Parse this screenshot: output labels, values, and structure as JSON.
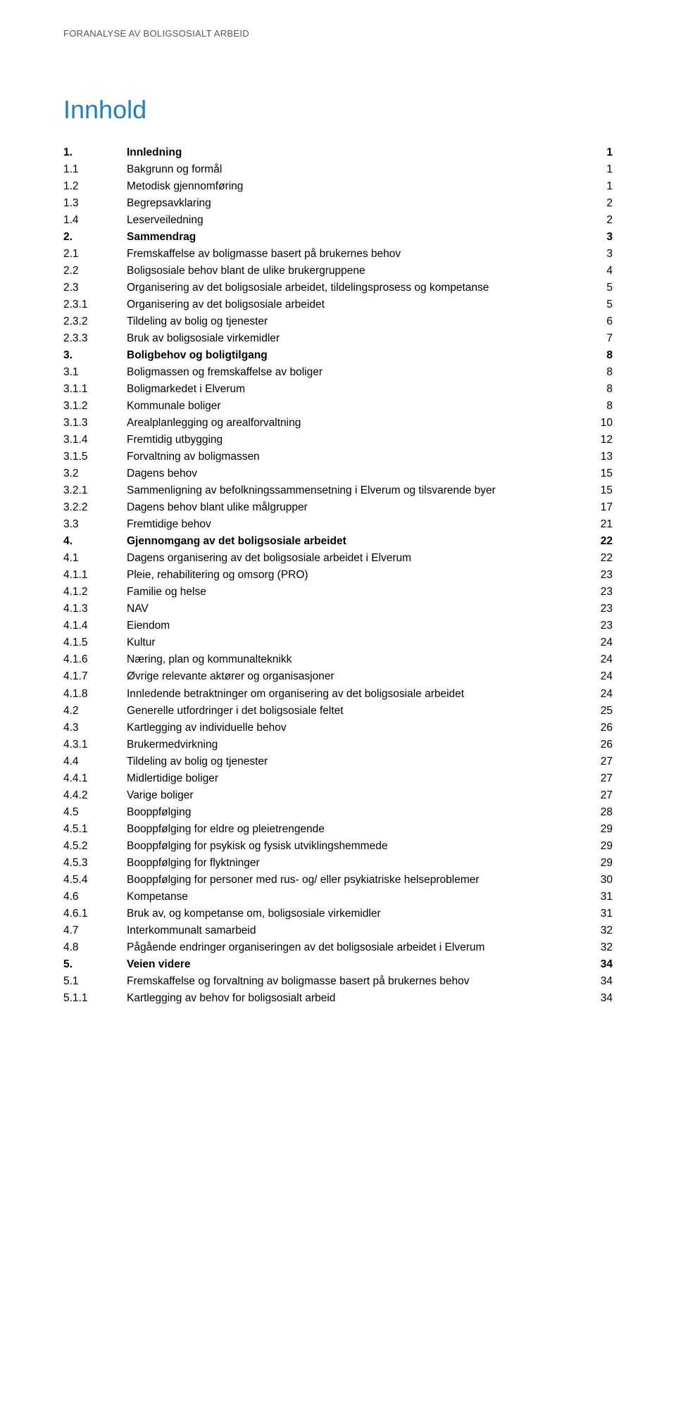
{
  "header_label": "FORANALYSE AV BOLIGSOSIALT ARBEID",
  "title": "Innhold",
  "colors": {
    "title_color": "#1f7fbf",
    "header_color": "#555555",
    "text_color": "#000000",
    "background": "#ffffff"
  },
  "typography": {
    "header_fontsize": 13,
    "title_fontsize": 36,
    "body_fontsize": 15.5,
    "line_height": 1.55
  },
  "toc": [
    {
      "num": "1.",
      "text": "Innledning",
      "page": "1",
      "bold": true
    },
    {
      "num": "1.1",
      "text": "Bakgrunn og formål",
      "page": "1",
      "bold": false
    },
    {
      "num": "1.2",
      "text": "Metodisk gjennomføring",
      "page": "1",
      "bold": false
    },
    {
      "num": "1.3",
      "text": "Begrepsavklaring",
      "page": "2",
      "bold": false
    },
    {
      "num": "1.4",
      "text": "Leserveiledning",
      "page": "2",
      "bold": false
    },
    {
      "num": "2.",
      "text": "Sammendrag",
      "page": "3",
      "bold": true
    },
    {
      "num": "2.1",
      "text": "Fremskaffelse av boligmasse basert på brukernes behov",
      "page": "3",
      "bold": false
    },
    {
      "num": "2.2",
      "text": "Boligsosiale behov blant de ulike brukergruppene",
      "page": "4",
      "bold": false
    },
    {
      "num": "2.3",
      "text": "Organisering av det boligsosiale arbeidet, tildelingsprosess og kompetanse",
      "page": "5",
      "bold": false
    },
    {
      "num": "2.3.1",
      "text": "Organisering av det boligsosiale arbeidet",
      "page": "5",
      "bold": false
    },
    {
      "num": "2.3.2",
      "text": "Tildeling av bolig og tjenester",
      "page": "6",
      "bold": false
    },
    {
      "num": "2.3.3",
      "text": "Bruk av boligsosiale virkemidler",
      "page": "7",
      "bold": false
    },
    {
      "num": "3.",
      "text": "Boligbehov og boligtilgang",
      "page": "8",
      "bold": true
    },
    {
      "num": "3.1",
      "text": "Boligmassen og fremskaffelse av boliger",
      "page": "8",
      "bold": false
    },
    {
      "num": "3.1.1",
      "text": "Boligmarkedet i Elverum",
      "page": "8",
      "bold": false
    },
    {
      "num": "3.1.2",
      "text": "Kommunale boliger",
      "page": "8",
      "bold": false
    },
    {
      "num": "3.1.3",
      "text": "Arealplanlegging og arealforvaltning",
      "page": "10",
      "bold": false
    },
    {
      "num": "3.1.4",
      "text": "Fremtidig utbygging",
      "page": "12",
      "bold": false
    },
    {
      "num": "3.1.5",
      "text": "Forvaltning av boligmassen",
      "page": "13",
      "bold": false
    },
    {
      "num": "3.2",
      "text": "Dagens behov",
      "page": "15",
      "bold": false
    },
    {
      "num": "3.2.1",
      "text": "Sammenligning av befolkningssammensetning i Elverum og tilsvarende byer",
      "page": "15",
      "bold": false
    },
    {
      "num": "3.2.2",
      "text": "Dagens behov blant ulike målgrupper",
      "page": "17",
      "bold": false
    },
    {
      "num": "3.3",
      "text": "Fremtidige behov",
      "page": "21",
      "bold": false
    },
    {
      "num": "4.",
      "text": "Gjennomgang av det boligsosiale arbeidet",
      "page": "22",
      "bold": true
    },
    {
      "num": "4.1",
      "text": "Dagens organisering av det boligsosiale arbeidet i Elverum",
      "page": "22",
      "bold": false
    },
    {
      "num": "4.1.1",
      "text": "Pleie, rehabilitering og omsorg (PRO)",
      "page": "23",
      "bold": false
    },
    {
      "num": "4.1.2",
      "text": "Familie og helse",
      "page": "23",
      "bold": false
    },
    {
      "num": "4.1.3",
      "text": "NAV",
      "page": "23",
      "bold": false
    },
    {
      "num": "4.1.4",
      "text": "Eiendom",
      "page": "23",
      "bold": false
    },
    {
      "num": "4.1.5",
      "text": "Kultur",
      "page": "24",
      "bold": false
    },
    {
      "num": "4.1.6",
      "text": "Næring, plan og kommunalteknikk",
      "page": "24",
      "bold": false
    },
    {
      "num": "4.1.7",
      "text": "Øvrige relevante aktører og organisasjoner",
      "page": "24",
      "bold": false
    },
    {
      "num": "4.1.8",
      "text": "Innledende betraktninger om organisering av det boligsosiale arbeidet",
      "page": "24",
      "bold": false
    },
    {
      "num": "4.2",
      "text": "Generelle utfordringer i det boligsosiale feltet",
      "page": "25",
      "bold": false
    },
    {
      "num": "4.3",
      "text": "Kartlegging av individuelle behov",
      "page": "26",
      "bold": false
    },
    {
      "num": "4.3.1",
      "text": "Brukermedvirkning",
      "page": "26",
      "bold": false
    },
    {
      "num": "4.4",
      "text": "Tildeling av bolig og tjenester",
      "page": "27",
      "bold": false
    },
    {
      "num": "4.4.1",
      "text": "Midlertidige boliger",
      "page": "27",
      "bold": false
    },
    {
      "num": "4.4.2",
      "text": "Varige boliger",
      "page": "27",
      "bold": false
    },
    {
      "num": "4.5",
      "text": "Booppfølging",
      "page": "28",
      "bold": false
    },
    {
      "num": "4.5.1",
      "text": "Booppfølging for eldre og pleietrengende",
      "page": "29",
      "bold": false
    },
    {
      "num": "4.5.2",
      "text": "Booppfølging for psykisk og fysisk utviklingshemmede",
      "page": "29",
      "bold": false
    },
    {
      "num": "4.5.3",
      "text": "Booppfølging for flyktninger",
      "page": "29",
      "bold": false
    },
    {
      "num": "4.5.4",
      "text": "Booppfølging for personer med rus- og/ eller psykiatriske helseproblemer",
      "page": "30",
      "bold": false
    },
    {
      "num": "4.6",
      "text": "Kompetanse",
      "page": "31",
      "bold": false
    },
    {
      "num": "4.6.1",
      "text": "Bruk av, og kompetanse om, boligsosiale virkemidler",
      "page": "31",
      "bold": false
    },
    {
      "num": "4.7",
      "text": "Interkommunalt samarbeid",
      "page": "32",
      "bold": false
    },
    {
      "num": "4.8",
      "text": "Pågående endringer organiseringen av det boligsosiale arbeidet i Elverum",
      "page": "32",
      "bold": false
    },
    {
      "num": "5.",
      "text": "Veien videre",
      "page": "34",
      "bold": true
    },
    {
      "num": "5.1",
      "text": "Fremskaffelse og forvaltning av boligmasse basert på brukernes behov",
      "page": "34",
      "bold": false
    },
    {
      "num": "5.1.1",
      "text": "Kartlegging av behov for boligsosialt arbeid",
      "page": "34",
      "bold": false
    }
  ]
}
